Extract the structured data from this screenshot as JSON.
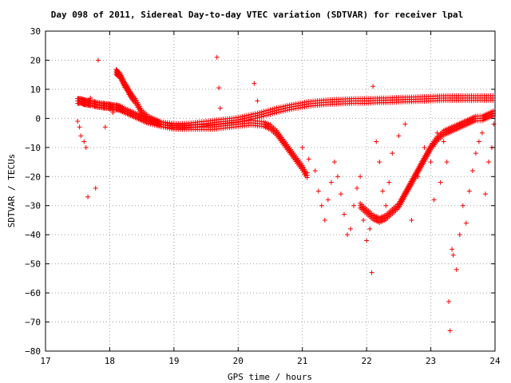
{
  "chart_data": {
    "type": "scatter",
    "title": "Day 098 of 2011, Sidereal Day-to-day VTEC variation (SDTVAR) for receiver lpal",
    "xlabel": "GPS time / hours",
    "ylabel": "SDTVAR / TECUs",
    "xlim": [
      17,
      24
    ],
    "ylim": [
      -80,
      30
    ],
    "xticks": [
      "17",
      "18",
      "19",
      "20",
      "21",
      "22",
      "23",
      "24"
    ],
    "yticks": [
      "30",
      "20",
      "10",
      "0",
      "−10",
      "−20",
      "−30",
      "−40",
      "−50",
      "−60",
      "−70",
      "−80"
    ],
    "grid": true,
    "marker": "+",
    "colors": {
      "points": "#ff0000",
      "axes": "#000000",
      "grid": "#a0a0a0"
    },
    "series": [
      {
        "name": "",
        "description_free": true,
        "x": [
          17.5,
          17.52,
          17.55,
          17.58,
          17.6,
          17.62,
          17.65,
          17.68,
          17.7,
          17.75,
          17.78,
          17.82,
          17.86,
          17.9,
          17.93,
          17.97,
          18.0,
          18.03,
          18.06,
          18.1,
          18.13,
          18.16,
          18.2,
          18.25,
          18.3,
          18.35,
          18.4,
          18.45,
          18.5,
          18.55,
          18.6,
          18.7,
          18.8,
          18.9,
          19.0,
          19.1,
          19.2,
          19.3,
          19.4,
          19.5,
          19.6,
          19.7,
          19.8,
          19.9,
          20.0,
          20.1,
          20.2,
          20.3,
          20.4,
          20.5,
          20.6,
          20.7,
          20.8,
          20.9,
          21.0,
          21.1,
          21.2,
          21.3,
          21.4,
          21.5,
          21.6,
          21.7,
          21.8,
          21.9,
          22.0,
          22.1,
          22.2,
          22.3,
          22.4,
          22.5,
          22.6,
          22.7,
          22.8,
          22.9,
          23.0,
          23.1,
          23.2,
          23.3,
          23.4,
          23.5,
          23.6,
          23.7,
          23.8,
          23.9,
          24.0
        ],
        "y": [
          6,
          6,
          6,
          5.8,
          5.6,
          5.5,
          5.4,
          5.3,
          5.2,
          5.0,
          4.8,
          4.6,
          4.5,
          4.4,
          4.3,
          4.2,
          4.1,
          4.0,
          3.9,
          3.8,
          3.7,
          3.5,
          3.0,
          2.5,
          2.0,
          1.5,
          1.0,
          0.5,
          0.0,
          -0.5,
          -1.0,
          -1.5,
          -2.0,
          -2.3,
          -2.5,
          -2.6,
          -2.5,
          -2.3,
          -2.0,
          -1.8,
          -1.5,
          -1.2,
          -1.0,
          -0.8,
          -0.5,
          0.0,
          0.5,
          1.0,
          1.6,
          2.2,
          2.8,
          3.3,
          3.8,
          4.2,
          4.6,
          5.0,
          5.2,
          5.4,
          5.6,
          5.7,
          5.8,
          5.9,
          6.0,
          6.0,
          6.0,
          6.1,
          6.2,
          6.2,
          6.3,
          6.4,
          6.5,
          6.5,
          6.6,
          6.7,
          6.8,
          6.9,
          7.0,
          7.0,
          7.0,
          7.0,
          7.0,
          7.0,
          7.0,
          7.0,
          7.0
        ]
      },
      {
        "name": "",
        "x": [
          18.1,
          18.12,
          18.15,
          18.18,
          18.2,
          18.22,
          18.25,
          18.28,
          18.3,
          18.33,
          18.36,
          18.4,
          18.45,
          18.5,
          18.6,
          18.7,
          18.8,
          18.9,
          19.0,
          19.2,
          19.4,
          19.6,
          19.8,
          20.0,
          20.2,
          20.4,
          20.5,
          20.6,
          20.7,
          20.8,
          20.9,
          21.0,
          21.05,
          21.1
        ],
        "y": [
          16,
          15.5,
          15,
          14,
          13,
          12,
          11,
          10,
          9,
          8,
          7,
          6,
          4,
          2,
          0,
          -1,
          -2,
          -2.5,
          -3,
          -3,
          -3,
          -3,
          -2.5,
          -2,
          -1.5,
          -2,
          -3,
          -5,
          -8,
          -11,
          -14,
          -17,
          -19,
          -20
        ]
      },
      {
        "name": "",
        "x": [
          21.9,
          22.0,
          22.1,
          22.2,
          22.3,
          22.4,
          22.5,
          22.6,
          22.7,
          22.8,
          22.9,
          23.0,
          23.1,
          23.2,
          23.3,
          23.4,
          23.5,
          23.6,
          23.7,
          23.8,
          23.9,
          24.0
        ],
        "y": [
          -30,
          -32,
          -34,
          -35,
          -34,
          -32,
          -30,
          -26,
          -22,
          -18,
          -14,
          -10,
          -7,
          -5,
          -4,
          -3,
          -2,
          -1,
          0,
          0,
          1,
          2
        ]
      },
      {
        "name": "",
        "x": [
          17.5,
          17.53,
          17.55,
          17.6,
          17.63,
          17.66,
          17.7,
          17.78,
          17.82,
          17.93,
          18.05,
          19.67,
          19.7,
          19.72,
          20.25,
          20.3,
          21.0,
          21.1,
          21.2,
          21.25,
          21.3,
          21.35,
          21.4,
          21.45,
          21.5,
          21.55,
          21.6,
          21.65,
          21.7,
          21.75,
          21.8,
          21.85,
          21.9,
          21.95,
          22.0,
          22.05,
          22.08,
          22.1,
          22.15,
          22.2,
          22.25,
          22.3,
          22.35,
          22.4,
          22.5,
          22.6,
          22.7,
          22.8,
          22.9,
          23.0,
          23.05,
          23.1,
          23.15,
          23.2,
          23.25,
          23.28,
          23.3,
          23.33,
          23.35,
          23.4,
          23.45,
          23.5,
          23.55,
          23.6,
          23.65,
          23.7,
          23.75,
          23.8,
          23.85,
          23.9,
          23.95,
          23.98
        ],
        "y": [
          -1,
          -3,
          -6,
          -8,
          -10,
          -27,
          7,
          -24,
          20,
          -3,
          2,
          21,
          10.5,
          3.5,
          12,
          6,
          -10,
          -14,
          -18,
          -25,
          -30,
          -35,
          -28,
          -22,
          -15,
          -20,
          -26,
          -33,
          -40,
          -38,
          -30,
          -24,
          -20,
          -35,
          -42,
          -38,
          -53,
          11,
          -8,
          -15,
          -25,
          -30,
          -22,
          -12,
          -6,
          -2,
          -35,
          -20,
          -10,
          -15,
          -28,
          -5,
          -22,
          -8,
          -15,
          -63,
          -73,
          -45,
          -47,
          -52,
          -40,
          -30,
          -36,
          -25,
          -18,
          -12,
          -8,
          -5,
          -26,
          -15,
          -10,
          -2
        ]
      }
    ]
  }
}
